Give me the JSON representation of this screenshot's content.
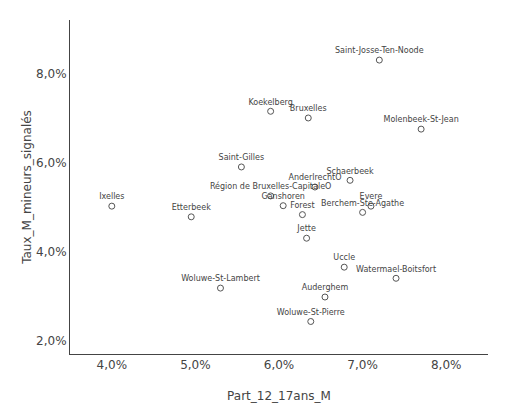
{
  "chart_data": {
    "type": "scatter",
    "labels": [
      "Saint-Josse-Ten-Noode",
      "Koekelberg",
      "Bruxelles",
      "Molenbeek-St-Jean",
      "Saint-Gilles",
      "Schaerbeek",
      "AnderlrechtO",
      "Ixelles",
      "Région de Bruxelles-CapitaleO",
      "Ganshoren",
      "Etterbeek",
      "Evere",
      "Forest",
      "Berchem-Ste-Agathe",
      "Jette",
      "Uccle",
      "Watermael-Boitsfort",
      "Woluwe-St-Lambert",
      "Auderghem",
      "Woluwe-St-Pierre"
    ],
    "x": [
      0.072,
      0.059,
      0.0635,
      0.077,
      0.0555,
      0.0685,
      0.0643,
      0.04,
      0.059,
      0.0605,
      0.0495,
      0.071,
      0.0628,
      0.07,
      0.0633,
      0.0678,
      0.074,
      0.053,
      0.0655,
      0.0638
    ],
    "values": [
      0.083,
      0.0715,
      0.07,
      0.0675,
      0.059,
      0.056,
      0.0545,
      0.0502,
      0.0525,
      0.0503,
      0.0478,
      0.0502,
      0.0483,
      0.0488,
      0.043,
      0.0365,
      0.034,
      0.0318,
      0.0298,
      0.0243
    ],
    "xlabel": "Part_12_17ans_M",
    "ylabel": "Taux_M_mineurs_signalés",
    "xlim": [
      0.035,
      0.085
    ],
    "ylim": [
      0.017,
      0.092
    ],
    "xticks": [
      {
        "value": 0.04,
        "label": "4,0%"
      },
      {
        "value": 0.05,
        "label": "5,0%"
      },
      {
        "value": 0.06,
        "label": "6,0%"
      },
      {
        "value": 0.07,
        "label": "7,0%"
      },
      {
        "value": 0.08,
        "label": "8,0%"
      }
    ],
    "yticks": [
      {
        "value": 0.02,
        "label": "2,0%"
      },
      {
        "value": 0.04,
        "label": "4,0%"
      },
      {
        "value": 0.06,
        "label": "6,0%"
      },
      {
        "value": 0.08,
        "label": "8,0%"
      }
    ],
    "grid": false,
    "color": "#555555",
    "marker": "circle-open"
  }
}
